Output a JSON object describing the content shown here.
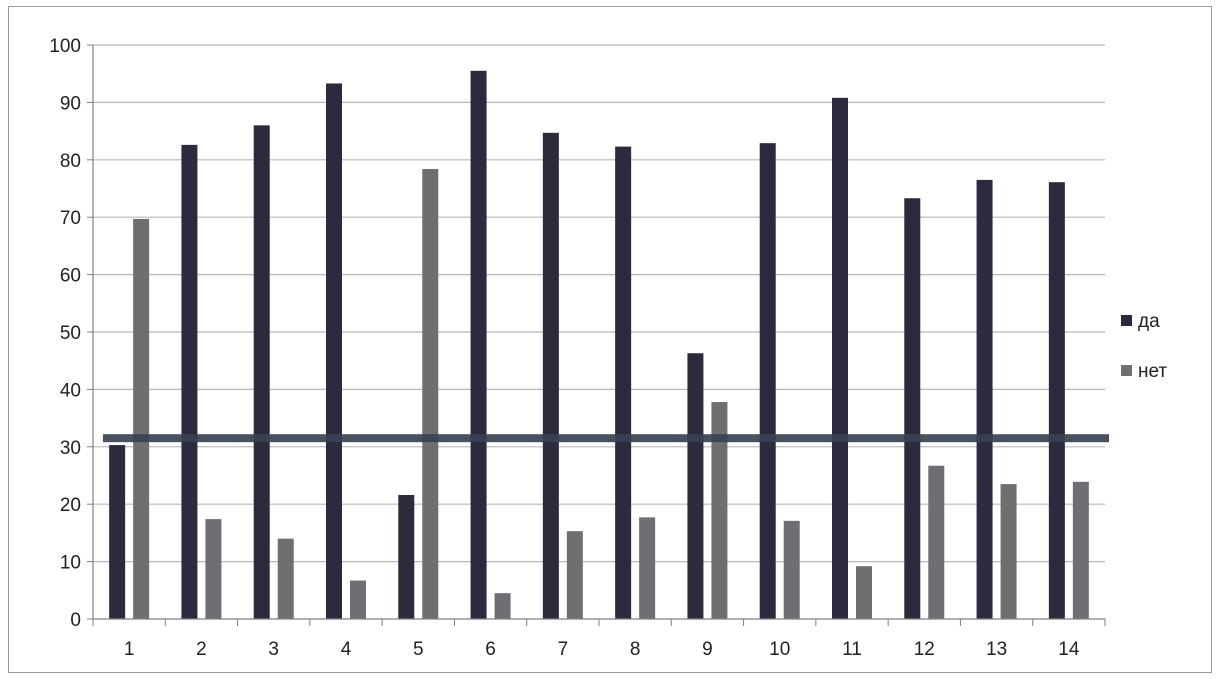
{
  "chart_data": {
    "type": "bar",
    "title": "",
    "xlabel": "",
    "ylabel": "",
    "categories": [
      "1",
      "2",
      "3",
      "4",
      "5",
      "6",
      "7",
      "8",
      "9",
      "10",
      "11",
      "12",
      "13",
      "14"
    ],
    "series": [
      {
        "name": "да",
        "color": "#2b2b3d",
        "values": [
          30.3,
          82.6,
          86,
          93.3,
          21.6,
          95.5,
          84.7,
          82.3,
          46.3,
          82.9,
          90.8,
          73.3,
          76.5,
          76.1
        ]
      },
      {
        "name": "нет",
        "color": "#6f6f73",
        "values": [
          69.7,
          17.4,
          14,
          6.7,
          78.4,
          4.5,
          15.3,
          17.7,
          37.8,
          17.1,
          9.2,
          26.7,
          23.5,
          23.9
        ]
      }
    ],
    "ylim": [
      0,
      100
    ],
    "yticks": [
      0,
      10,
      20,
      30,
      40,
      50,
      60,
      70,
      80,
      90,
      100
    ],
    "grid": true,
    "legend_position": "right",
    "reference_line": {
      "value": 31.5,
      "color": "#3a4152"
    }
  }
}
